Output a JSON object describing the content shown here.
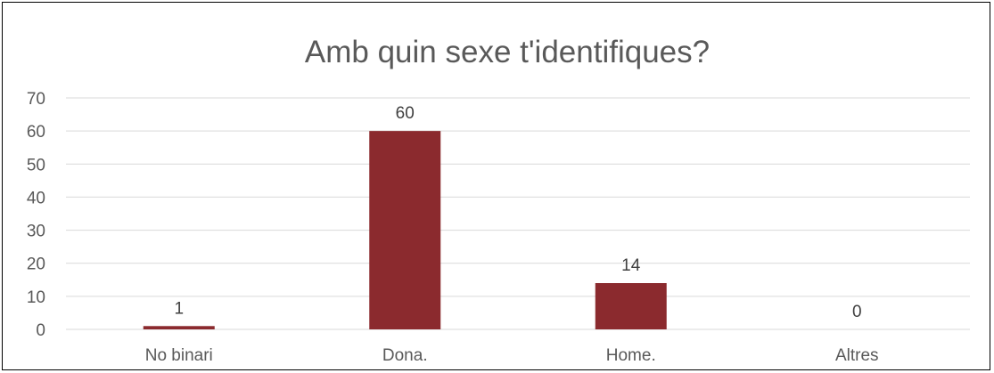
{
  "chart_data": {
    "type": "bar",
    "title": "Amb quin sexe t'identifiques?",
    "categories": [
      "No binari",
      "Dona.",
      "Home.",
      "Altres"
    ],
    "values": [
      1,
      60,
      14,
      0
    ],
    "data_labels": [
      "1",
      "60",
      "14",
      "0"
    ],
    "ylim": [
      0,
      70
    ],
    "yticks": [
      "0",
      "10",
      "20",
      "30",
      "40",
      "50",
      "60",
      "70"
    ],
    "xlabel": "",
    "ylabel": "",
    "grid": true,
    "legend": "none",
    "bar_color": "#8b2a2e",
    "grid_color": "#d9d9d9"
  }
}
